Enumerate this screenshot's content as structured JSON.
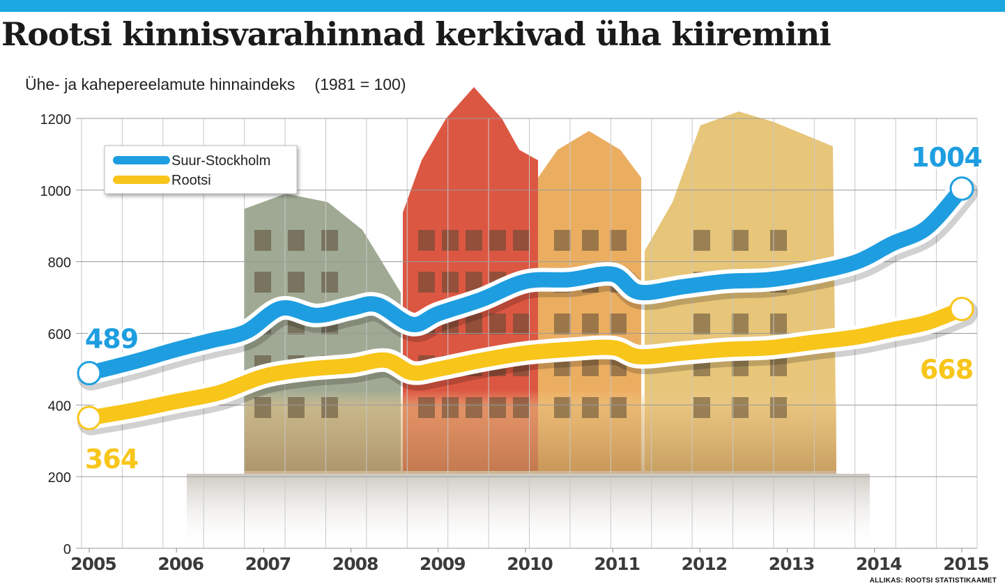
{
  "header": {
    "title": "Rootsi kinnisvarahinnad kerkivad üha kiiremini",
    "subtitle": "Ühe- ja kahepereelamute hinnaindeks",
    "base_note": "(1981 = 100)",
    "source": "ALLIKAS: ROOTSI STATISTIKAAMET"
  },
  "colors": {
    "stockholm": "#1e9ee0",
    "sweden": "#f8c51a",
    "grid": "#c8c8c8",
    "accent_bar": "#1ba7e0"
  },
  "chart_data": {
    "type": "line",
    "title": "Rootsi kinnisvarahinnad kerkivad üha kiiremini",
    "subtitle": "Ühe- ja kahepereelamute hinnaindeks",
    "xlabel": "",
    "ylabel": "",
    "ylim": [
      0,
      1200
    ],
    "yticks": [
      "0",
      "200",
      "400",
      "600",
      "800",
      "1000",
      "1200"
    ],
    "ytick_values": [
      0,
      200,
      400,
      600,
      800,
      1000,
      1200
    ],
    "xlim": [
      2005,
      2015
    ],
    "xticks": [
      "2005",
      "2006",
      "2007",
      "2008",
      "2009",
      "2010",
      "2011",
      "2012",
      "2013",
      "2014",
      "2015"
    ],
    "xtick_values": [
      2005,
      2006,
      2007,
      2008,
      2009,
      2010,
      2011,
      2012,
      2013,
      2014,
      2015
    ],
    "grid": true,
    "legend_position": "top-left",
    "series": [
      {
        "name": "Suur-Stockholm",
        "color": "#1e9ee0",
        "x": [
          2005,
          2005.5,
          2006,
          2006.4,
          2006.8,
          2007.2,
          2007.6,
          2008,
          2008.3,
          2008.7,
          2009,
          2009.5,
          2010,
          2010.5,
          2011,
          2011.3,
          2011.8,
          2012.3,
          2012.8,
          2013.3,
          2013.8,
          2014.2,
          2014.6,
          2015
        ],
        "values": [
          489,
          520,
          555,
          580,
          605,
          670,
          650,
          670,
          680,
          625,
          655,
          695,
          745,
          750,
          765,
          715,
          730,
          745,
          750,
          770,
          800,
          850,
          895,
          1004
        ],
        "start_label": "489",
        "end_label": "1004"
      },
      {
        "name": "Rootsi",
        "color": "#f8c51a",
        "x": [
          2005,
          2005.5,
          2006,
          2006.5,
          2007,
          2007.5,
          2008,
          2008.4,
          2008.7,
          2009,
          2009.5,
          2010,
          2010.5,
          2011,
          2011.3,
          2011.8,
          2012.3,
          2012.8,
          2013.3,
          2013.8,
          2014.2,
          2014.6,
          2015
        ],
        "values": [
          364,
          385,
          410,
          435,
          480,
          500,
          510,
          525,
          490,
          500,
          525,
          545,
          555,
          560,
          535,
          545,
          555,
          560,
          575,
          590,
          610,
          630,
          668
        ],
        "start_label": "364",
        "end_label": "668"
      }
    ]
  }
}
